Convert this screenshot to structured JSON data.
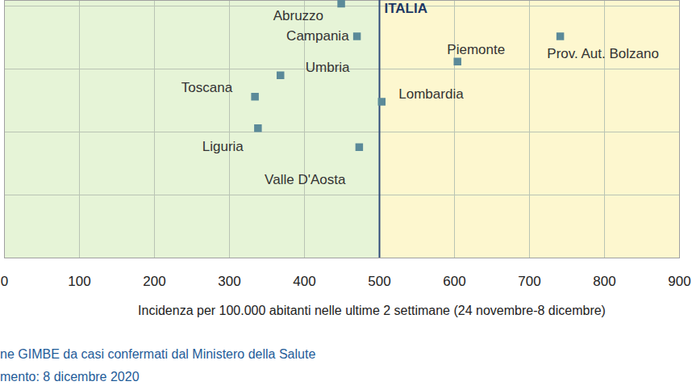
{
  "chart_data": {
    "type": "scatter",
    "x_label": "Incidenza per 100.000  abitanti nelle ultime 2 settimane (24 novembre-8 dicembre)",
    "caption": [
      "ne GIMBE da casi confermati dal Ministero della Salute",
      "mento: 8 dicembre 2020"
    ],
    "labels": [
      "Abruzzo",
      "Campania",
      "Piemonte",
      "Prov. Aut. Bolzano",
      "Umbria",
      "Toscana",
      "Lombardia",
      "Liguria",
      "Valle D'Aosta"
    ],
    "x": [
      449,
      470,
      604,
      741,
      368,
      334,
      503,
      338,
      473
    ],
    "values": [
      20.2,
      17.6,
      15.6,
      17.6,
      14.5,
      12.8,
      12.4,
      10.3,
      8.8
    ],
    "reference_line": {
      "value": 500,
      "label": "ITALIA"
    },
    "xlim": [
      0,
      900
    ],
    "xticks": [
      0,
      100,
      200,
      300,
      400,
      500,
      600,
      700,
      800,
      900
    ],
    "ylim": [
      0,
      20.45
    ],
    "yticks": [
      0,
      5,
      10,
      15,
      20
    ],
    "grid": true,
    "tick_labels": "x",
    "marker": "square",
    "color": "#5b8a99"
  }
}
